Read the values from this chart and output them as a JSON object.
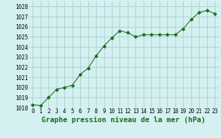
{
  "x": [
    0,
    1,
    2,
    3,
    4,
    5,
    6,
    7,
    8,
    9,
    10,
    11,
    12,
    13,
    14,
    15,
    16,
    17,
    18,
    19,
    20,
    21,
    22,
    23
  ],
  "y": [
    1018.3,
    1018.2,
    1019.0,
    1019.8,
    1020.0,
    1020.2,
    1021.3,
    1021.9,
    1023.1,
    1024.1,
    1024.9,
    1025.6,
    1025.4,
    1025.0,
    1025.2,
    1025.2,
    1025.2,
    1025.2,
    1025.2,
    1025.8,
    1026.7,
    1027.4,
    1027.6,
    1027.3
  ],
  "line_color": "#1a6e1a",
  "marker": "D",
  "marker_size": 2.5,
  "bg_color": "#d4f0f0",
  "grid_color": "#a8cece",
  "xlabel": "Graphe pression niveau de la mer (hPa)",
  "xlabel_fontsize": 7.5,
  "xlabel_color": "#1a6e1a",
  "ylim": [
    1018,
    1028.5
  ],
  "xlim": [
    -0.5,
    23.5
  ],
  "yticks": [
    1018,
    1019,
    1020,
    1021,
    1022,
    1023,
    1024,
    1025,
    1026,
    1027,
    1028
  ],
  "xtick_labels": [
    "0",
    "1",
    "2",
    "3",
    "4",
    "5",
    "6",
    "7",
    "8",
    "9",
    "10",
    "11",
    "12",
    "13",
    "14",
    "15",
    "16",
    "17",
    "18",
    "19",
    "20",
    "21",
    "22",
    "23"
  ],
  "tick_fontsize": 5.5
}
